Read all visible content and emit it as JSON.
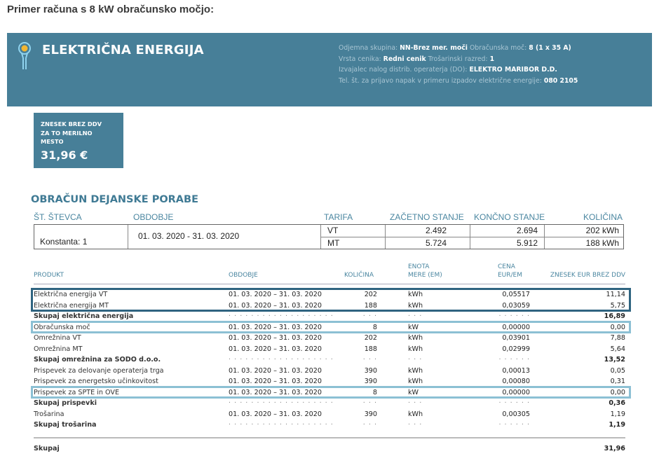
{
  "title": "Primer računa s 8 kW obračunsko močjo:",
  "banner": {
    "icon": "lightbulb-euro-icon",
    "title": "ELEKTRIČNA ENERGIJA",
    "info": [
      {
        "label": "Odjemna skupina:",
        "value": "NN-Brez mer. moči",
        "label2": "Obračunska moč:",
        "value2": "8 (1 x 35 A)"
      },
      {
        "label": "Vrsta cenika:",
        "value": "Redni cenik",
        "label2": "Trošarinski razred:",
        "value2": "1"
      },
      {
        "label": "Izvajalec nalog distrib. operaterja (DO):",
        "value": "ELEKTRO MARIBOR D.D."
      },
      {
        "label": "Tel. št. za prijavo napak v primeru izpadov električne energije:",
        "value": "080 2105"
      }
    ],
    "color": "#477f98"
  },
  "summary_box": {
    "label": "ZNESEK BREZ DDV ZA TO MERILNO MESTO",
    "value": "31,96 €"
  },
  "meter_section": {
    "title": "OBRAČUN DEJANSKE PORABE",
    "headers": [
      "ŠT. ŠTEVCA",
      "OBDOBJE",
      "TARIFA",
      "ZAČETNO STANJE",
      "KONČNO STANJE",
      "KOLIČINA"
    ],
    "meter": "Konstanta: 1",
    "period": "01. 03. 2020 - 31. 03. 2020",
    "rows": [
      {
        "tarifa": "VT",
        "start": "2.492",
        "end": "2.694",
        "qty": "202 kWh"
      },
      {
        "tarifa": "MT",
        "start": "5.724",
        "end": "5.912",
        "qty": "188 kWh"
      }
    ]
  },
  "products": {
    "headers": {
      "produkt": "PRODUKT",
      "obdobje": "OBDOBJE",
      "kolicina": "KOLIČINA",
      "enota1": "ENOTA",
      "enota2": "MERE (EM)",
      "cena1": "CENA",
      "cena2": "EUR/EM",
      "znesek": "ZNESEK EUR BREZ DDV"
    },
    "rows": [
      {
        "p": "Električna energija VT",
        "o": "01. 03. 2020  –  31. 03. 2020",
        "k": "202",
        "e": "kWh",
        "c": "0,05517",
        "z": "11,14",
        "highlight": "dark"
      },
      {
        "p": "Električna energija MT",
        "o": "01. 03. 2020  –  31. 03. 2020",
        "k": "188",
        "e": "kWh",
        "c": "0,03059",
        "z": "5,75",
        "highlight": "dark"
      },
      {
        "p": "Skupaj električna energija",
        "o": "· · · · · · · · · · · · · · · · · · ·",
        "k": "· · ·",
        "e": "· · ·",
        "c": "· · · · · ·",
        "z": "16,89",
        "bold": true
      },
      {
        "p": "Obračunska moč",
        "o": "01. 03. 2020  –  31. 03. 2020",
        "k": "8",
        "e": "kW",
        "c": "0,00000",
        "z": "0,00",
        "highlight": "light"
      },
      {
        "p": "Omrežnina VT",
        "o": "01. 03. 2020  –  31. 03. 2020",
        "k": "202",
        "e": "kWh",
        "c": "0,03901",
        "z": "7,88"
      },
      {
        "p": "Omrežnina MT",
        "o": "01. 03. 2020  –  31. 03. 2020",
        "k": "188",
        "e": "kWh",
        "c": "0,02999",
        "z": "5,64"
      },
      {
        "p": "Skupaj omrežnina za SODO d.o.o.",
        "o": "· · · · · · · · · · · · · · · · · · ·",
        "k": "· · ·",
        "e": "· · ·",
        "c": "· · · · · ·",
        "z": "13,52",
        "bold": true
      },
      {
        "p": "Prispevek za delovanje operaterja trga",
        "o": "01. 03. 2020  –  31. 03. 2020",
        "k": "390",
        "e": "kWh",
        "c": "0,00013",
        "z": "0,05"
      },
      {
        "p": "Prispevek za energetsko učinkovitost",
        "o": "01. 03. 2020  –  31. 03. 2020",
        "k": "390",
        "e": "kWh",
        "c": "0,00080",
        "z": "0,31"
      },
      {
        "p": "Prispevek za SPTE in OVE",
        "o": "01. 03. 2020  –  31. 03. 2020",
        "k": "8",
        "e": "kW",
        "c": "0,00000",
        "z": "0,00",
        "highlight": "light"
      },
      {
        "p": "Skupaj prispevki",
        "o": "· · · · · · · · · · · · · · · · · · ·",
        "k": "· · ·",
        "e": "· · ·",
        "c": "· · · · · ·",
        "z": "0,36",
        "bold": true
      },
      {
        "p": "Trošarina",
        "o": "01. 03. 2020  –  31. 03. 2020",
        "k": "390",
        "e": "kWh",
        "c": "0,00305",
        "z": "1,19"
      },
      {
        "p": "Skupaj trošarina",
        "o": "· · · · · · · · · · · · · · · · · · ·",
        "k": "· · ·",
        "e": "· · ·",
        "c": "· · · · · ·",
        "z": "1,19",
        "bold": true
      }
    ],
    "total": {
      "label": "Skupaj",
      "value": "31,96"
    },
    "highlight_colors": {
      "dark": "#2f6480",
      "light": "#8cc0d4"
    }
  }
}
